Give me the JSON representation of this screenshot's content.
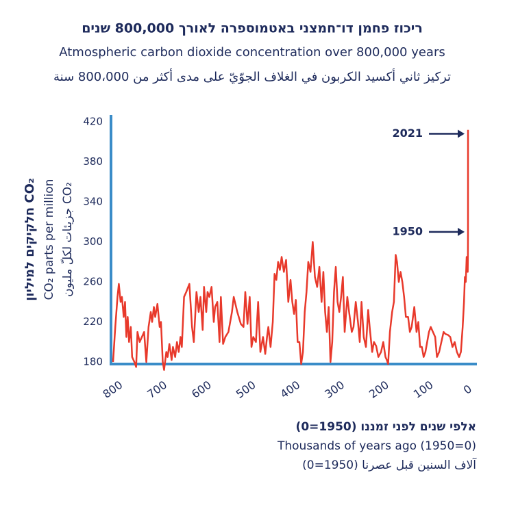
{
  "chart_data": {
    "type": "line",
    "titles": [
      "ריכוז פחמן דו־חמצני באטמוספרה לאורך 800,000 שנים",
      "Atmospheric carbon dioxide concentration over 800,000 years",
      "تركيز ثاني أكسيد الكربون في الغلاف الجوّيّ على مدى أكثر من 800،000 سنة"
    ],
    "ylabel": [
      "חלקיקים למיליון CO₂",
      "CO₂ parts per million",
      "جزيئات لكلّ مليون CO₂"
    ],
    "xlabel": [
      "אלפי שנים לפני זמננו (1950=0)",
      "Thousands of years ago (1950=0)",
      "آلاف السنين قبل عصرنا (1950=0)"
    ],
    "annotations": [
      {
        "text": "2021",
        "y": 408
      },
      {
        "text": "1950",
        "y": 310
      }
    ],
    "color": "#e8392b",
    "xlim": [
      800,
      0
    ],
    "xticks": [
      800,
      700,
      600,
      500,
      400,
      300,
      200,
      100,
      0
    ],
    "ylim": [
      180,
      420
    ],
    "yticks": [
      180,
      220,
      260,
      300,
      340,
      380,
      420
    ],
    "x": [
      800,
      795,
      790,
      787,
      783,
      780,
      776,
      773,
      770,
      767,
      764,
      760,
      757,
      752,
      748,
      745,
      740,
      735,
      730,
      725,
      720,
      715,
      712,
      708,
      705,
      700,
      695,
      692,
      688,
      685,
      680,
      677,
      673,
      668,
      665,
      660,
      656,
      652,
      648,
      645,
      640,
      635,
      628,
      622,
      618,
      612,
      607,
      603,
      598,
      595,
      590,
      587,
      583,
      578,
      573,
      570,
      565,
      560,
      557,
      552,
      547,
      540,
      532,
      528,
      520,
      512,
      506,
      502,
      497,
      492,
      488,
      484,
      478,
      473,
      468,
      462,
      457,
      453,
      450,
      445,
      440,
      436,
      432,
      428,
      424,
      420,
      415,
      410,
      405,
      400,
      396,
      392,
      388,
      384,
      380,
      376,
      372,
      368,
      364,
      360,
      355,
      350,
      345,
      340,
      335,
      330,
      326,
      322,
      318,
      314,
      310,
      306,
      302,
      298,
      294,
      290,
      286,
      282,
      278,
      272,
      268,
      262,
      258,
      253,
      248,
      244,
      240,
      235,
      230,
      225,
      221,
      216,
      212,
      207,
      202,
      196,
      191,
      186,
      183,
      180,
      176,
      171,
      167,
      163,
      160,
      156,
      152,
      148,
      144,
      140,
      135,
      131,
      127,
      121,
      116,
      112,
      108,
      104,
      100,
      96,
      92,
      88,
      84,
      79,
      74,
      70,
      65,
      60,
      55,
      51,
      45,
      40,
      35,
      30,
      25,
      20,
      16,
      12,
      9,
      7,
      5,
      3,
      1.5,
      0.6,
      0.2,
      0,
      -0.071
    ],
    "values": [
      180,
      215,
      245,
      258,
      240,
      245,
      225,
      240,
      205,
      225,
      200,
      215,
      185,
      180,
      175,
      210,
      200,
      205,
      210,
      180,
      215,
      230,
      220,
      235,
      225,
      238,
      215,
      220,
      180,
      172,
      190,
      185,
      198,
      182,
      195,
      185,
      200,
      190,
      205,
      195,
      245,
      250,
      258,
      215,
      200,
      250,
      230,
      245,
      212,
      255,
      230,
      250,
      245,
      255,
      220,
      235,
      240,
      200,
      245,
      198,
      205,
      210,
      230,
      245,
      230,
      218,
      215,
      250,
      218,
      245,
      195,
      205,
      200,
      240,
      190,
      205,
      188,
      205,
      215,
      195,
      220,
      268,
      262,
      280,
      272,
      285,
      270,
      282,
      240,
      262,
      240,
      228,
      242,
      200,
      200,
      178,
      190,
      230,
      250,
      280,
      270,
      300,
      265,
      255,
      275,
      240,
      270,
      230,
      210,
      235,
      180,
      200,
      250,
      275,
      240,
      230,
      245,
      265,
      210,
      245,
      230,
      210,
      215,
      240,
      220,
      200,
      240,
      205,
      195,
      232,
      212,
      190,
      200,
      196,
      185,
      190,
      200,
      185,
      182,
      178,
      210,
      230,
      240,
      287,
      280,
      260,
      270,
      260,
      245,
      225,
      225,
      210,
      215,
      235,
      210,
      220,
      195,
      195,
      185,
      190,
      200,
      210,
      215,
      210,
      205,
      185,
      190,
      200,
      210,
      208,
      207,
      205,
      195,
      200,
      190,
      185,
      190,
      215,
      240,
      265,
      260,
      285,
      280,
      270,
      285,
      310,
      412
    ]
  }
}
